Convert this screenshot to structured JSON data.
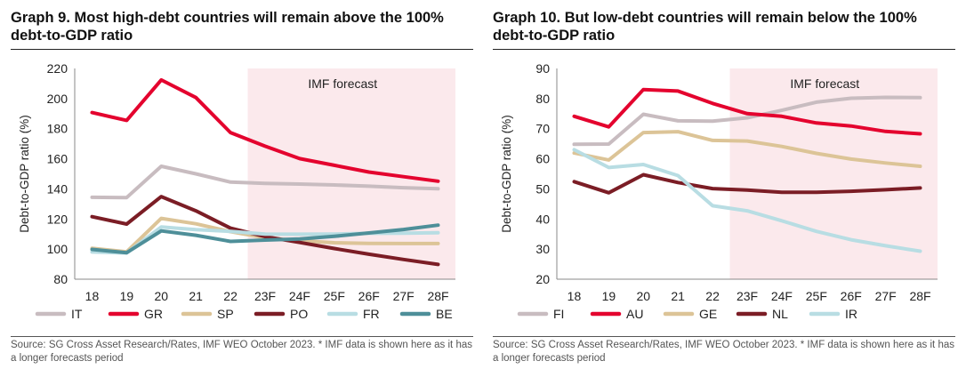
{
  "charts": [
    {
      "title": "Graph 9. Most high-debt countries will remain above the 100% debt-to-GDP ratio",
      "source": "Source: SG Cross Asset Research/Rates, IMF WEO October 2023. * IMF data is shown here as it has a longer forecasts period"
    },
    {
      "title": "Graph 10. But low-debt countries will remain below the 100% debt-to-GDP ratio",
      "source": "Source: SG Cross Asset Research/Rates, IMF WEO October 2023. * IMF data is shown here as it has a longer forecasts period"
    }
  ],
  "colors": {
    "forecast_shade": "#fbe9ec"
  },
  "chart_data": [
    {
      "type": "line",
      "title": "Graph 9. Most high-debt countries will remain above the 100% debt-to-GDP ratio",
      "ylabel": "Debt-to-GDP ratio (%)",
      "ylim": [
        80,
        220
      ],
      "yticks": [
        80,
        100,
        120,
        140,
        160,
        180,
        200,
        220
      ],
      "categories": [
        "18",
        "19",
        "20",
        "21",
        "22",
        "23F",
        "24F",
        "25F",
        "26F",
        "27F",
        "28F"
      ],
      "forecast_from": "23F",
      "annotation": "IMF forecast",
      "legend": "bottom",
      "grid": false,
      "series": [
        {
          "name": "IT",
          "color": "#c8bcc0",
          "values": [
            134.4,
            134.2,
            155,
            150,
            144.5,
            143.7,
            143.2,
            142.6,
            141.8,
            140.8,
            140.1
          ]
        },
        {
          "name": "GR",
          "color": "#e4032e",
          "values": [
            190.7,
            185.5,
            212.4,
            200.7,
            177.4,
            168.4,
            160.1,
            155.7,
            151.2,
            148.1,
            145.1
          ]
        },
        {
          "name": "SP",
          "color": "#dcc497",
          "values": [
            100.5,
            98.2,
            120.4,
            116.8,
            111.6,
            107.5,
            105.5,
            104.2,
            103.8,
            103.7,
            103.7
          ]
        },
        {
          "name": "PO",
          "color": "#7b1d25",
          "values": [
            121.5,
            116.6,
            134.9,
            125.4,
            113.9,
            108.3,
            104.4,
            100.4,
            96.6,
            93.1,
            89.8
          ]
        },
        {
          "name": "FR",
          "color": "#b8dde3",
          "values": [
            98.1,
            97.4,
            114.7,
            112.9,
            111.8,
            110,
            109.9,
            110,
            110.5,
            110.6,
            110.9
          ]
        },
        {
          "name": "BE",
          "color": "#4e8f99",
          "values": [
            99.8,
            97.6,
            112.1,
            109.2,
            105.1,
            106,
            106.7,
            108.5,
            110.7,
            113,
            115.9
          ]
        }
      ]
    },
    {
      "type": "line",
      "title": "Graph 10. But low-debt countries will remain below the 100% debt-to-GDP ratio",
      "ylabel": "Debt-to-GDP ratio (%)",
      "ylim": [
        20,
        90
      ],
      "yticks": [
        20,
        30,
        40,
        50,
        60,
        70,
        80,
        90
      ],
      "categories": [
        "18",
        "19",
        "20",
        "21",
        "22",
        "23F",
        "24F",
        "25F",
        "26F",
        "27F",
        "28F"
      ],
      "forecast_from": "23F",
      "annotation": "IMF forecast",
      "legend": "bottom",
      "grid": false,
      "series": [
        {
          "name": "FI",
          "color": "#c8bcc0",
          "values": [
            64.8,
            64.9,
            74.8,
            72.6,
            72.5,
            73.6,
            76.1,
            78.8,
            80.1,
            80.4,
            80.3
          ]
        },
        {
          "name": "AU",
          "color": "#e4032e",
          "values": [
            74.1,
            70.6,
            83,
            82.5,
            78.4,
            75,
            74.1,
            71.9,
            70.9,
            69.1,
            68.3
          ]
        },
        {
          "name": "GE",
          "color": "#dcc497",
          "values": [
            61.9,
            59.6,
            68.7,
            69,
            66.1,
            65.9,
            64.1,
            61.8,
            59.9,
            58.6,
            57.5
          ]
        },
        {
          "name": "NL",
          "color": "#7b1d25",
          "values": [
            52.4,
            48.7,
            54.7,
            52.1,
            50.1,
            49.6,
            48.9,
            48.9,
            49.2,
            49.7,
            50.3
          ]
        },
        {
          "name": "IR",
          "color": "#b8dde3",
          "values": [
            63,
            57.1,
            58.1,
            54.4,
            44.4,
            42.7,
            39.4,
            35.9,
            33.1,
            31.1,
            29.3
          ]
        }
      ]
    }
  ]
}
